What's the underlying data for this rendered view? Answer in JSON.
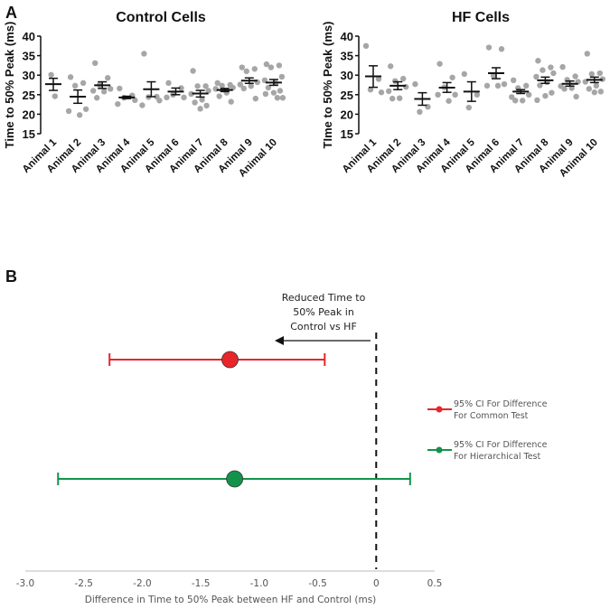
{
  "chart_data": [
    {
      "type": "scatter",
      "panel_label": "A",
      "title": "Control Cells",
      "ylabel": "Time to 50% Peak  (ms)",
      "ylim": [
        15,
        40
      ],
      "yticks": [
        "15",
        "20",
        "25",
        "30",
        "35",
        "40"
      ],
      "categories": [
        "Animal 1",
        "Animal 2",
        "Animal 3",
        "Animal 4",
        "Animal 5",
        "Animal 6",
        "Animal 7",
        "Animal 8",
        "Animal 9",
        "Animal 10"
      ],
      "points": [
        [
          30.1,
          24.6
        ],
        [
          29.5,
          28.0,
          27.3,
          21.3,
          20.8,
          19.8
        ],
        [
          33.1,
          29.3,
          27.5,
          26.5,
          26.0,
          25.8,
          24.2
        ],
        [
          26.6,
          24.8,
          24.2,
          23.6,
          22.6
        ],
        [
          35.5,
          24.5,
          24.4,
          23.5,
          22.3
        ],
        [
          28.0,
          26.7,
          25.0,
          24.3,
          24.3
        ],
        [
          31.1,
          27.2,
          27.2,
          26.0,
          25.2,
          23.7,
          23.0,
          22.2,
          21.4
        ],
        [
          28.0,
          27.5,
          27.3,
          26.8,
          26.5,
          25.5,
          24.6,
          23.2
        ],
        [
          32.0,
          31.6,
          31.0,
          28.2,
          27.6,
          27.2,
          26.6,
          24.0
        ],
        [
          32.8,
          32.5,
          32.0,
          29.6,
          28.7,
          28.0,
          26.8,
          26.0,
          25.5,
          25.2,
          24.2,
          24.2
        ]
      ],
      "mean": [
        27.7,
        24.5,
        27.4,
        24.3,
        26.4,
        25.8,
        25.3,
        26.2,
        28.6,
        28.1
      ],
      "err_low": [
        26.1,
        22.8,
        26.6,
        24.0,
        24.5,
        25.0,
        24.4,
        25.8,
        27.9,
        27.4
      ],
      "err_high": [
        29.2,
        26.2,
        28.3,
        24.6,
        28.3,
        26.7,
        26.1,
        26.6,
        29.3,
        28.9
      ]
    },
    {
      "type": "scatter",
      "title": "HF Cells",
      "ylabel": "TIme to 50% Peak  (ms)",
      "ylim": [
        15,
        40
      ],
      "yticks": [
        "15",
        "20",
        "25",
        "30",
        "35",
        "40"
      ],
      "categories": [
        "Animal 1",
        "Animal 2",
        "Animal 3",
        "Animal 4",
        "Animal 5",
        "Animal 6",
        "Animal 7",
        "Animal 8",
        "Animal 9",
        "Animal 10"
      ],
      "points": [
        [
          37.5,
          29.0,
          26.3,
          25.6
        ],
        [
          32.3,
          29.1,
          28.5,
          27.0,
          25.9,
          24.1,
          24.0
        ],
        [
          27.7,
          21.9,
          20.6
        ],
        [
          32.9,
          29.4,
          26.9,
          25.0,
          25.0,
          23.4
        ],
        [
          30.3,
          25.0,
          21.7
        ],
        [
          37.1,
          36.7,
          29.9,
          27.7,
          27.3,
          27.3
        ],
        [
          28.7,
          27.3,
          26.7,
          25.0,
          24.4,
          23.5,
          23.5
        ],
        [
          33.7,
          32.0,
          31.3,
          30.5,
          29.6,
          28.2,
          27.4,
          25.5,
          24.7,
          23.6
        ],
        [
          32.1,
          29.7,
          28.8,
          28.3,
          27.2,
          26.7,
          26.5,
          24.5
        ],
        [
          35.5,
          30.5,
          30.3,
          29.0,
          28.3,
          27.3,
          26.5,
          25.8,
          25.6
        ]
      ],
      "mean": [
        29.7,
        27.3,
        23.9,
        26.8,
        25.8,
        30.5,
        25.8,
        28.7,
        27.8,
        28.8
      ],
      "err_low": [
        26.9,
        26.3,
        22.3,
        25.6,
        23.3,
        29.1,
        25.3,
        27.9,
        27.2,
        28.1
      ],
      "err_high": [
        32.4,
        28.3,
        25.5,
        28.1,
        28.3,
        31.9,
        26.3,
        29.5,
        28.5,
        29.5
      ]
    },
    {
      "type": "forest",
      "panel_label": "B",
      "xlabel": "Difference in Time to 50% Peak between HF and Control (ms)",
      "xlim": [
        -3.0,
        0.5
      ],
      "xticks": [
        "-3.0",
        "-2.5",
        "-2.0",
        "-1.5",
        "-1.0",
        "-0.5",
        "0",
        "0.5"
      ],
      "annotation": [
        "Reduced Time to",
        "50% Peak in",
        "Control vs HF"
      ],
      "series": [
        {
          "name_lines": [
            "95% CI For Difference",
            "For Common Test"
          ],
          "estimate": -1.25,
          "ci": [
            -2.28,
            -0.44
          ],
          "color": "#e8252b"
        },
        {
          "name_lines": [
            "95% CI For Difference",
            "For Hierarchical Test"
          ],
          "estimate": -1.21,
          "ci": [
            -2.72,
            0.29
          ],
          "color": "#13934a"
        }
      ]
    }
  ]
}
